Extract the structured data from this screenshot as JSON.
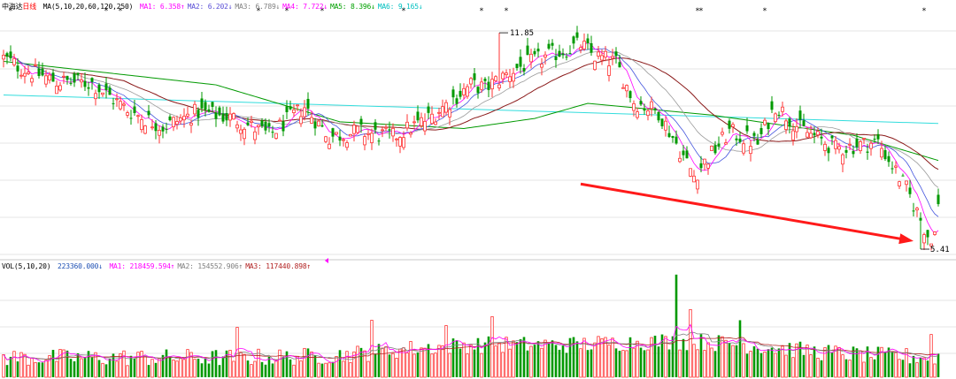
{
  "header": {
    "stock_name": "中海达",
    "period": "日线",
    "ma_params": "MA(5,10,20,60,120,250)",
    "ma_values": [
      {
        "label": "MA1:",
        "value": "6.358↑",
        "color": "#ff00ff"
      },
      {
        "label": "MA2:",
        "value": "6.202↓",
        "color": "#5a4fd6"
      },
      {
        "label": "MA3:",
        "value": "6.789↓",
        "color": "#808080"
      },
      {
        "label": "MA4:",
        "value": "7.722↓",
        "color": "#ff00ff"
      },
      {
        "label": "MA5:",
        "value": "8.396↓",
        "color": "#00a000"
      },
      {
        "label": "MA6:",
        "value": "9.165↓",
        "color": "#00c0c0"
      }
    ]
  },
  "volume_header": {
    "params": "VOL(5,10,20)",
    "value": "223360.000↓",
    "ma_values": [
      {
        "label": "MA1:",
        "value": "218459.594↑",
        "color": "#ff00ff"
      },
      {
        "label": "MA2:",
        "value": "154552.906↑",
        "color": "#808080"
      },
      {
        "label": "MA3:",
        "value": "117440.898↑",
        "color": "#b22222"
      }
    ]
  },
  "annotations": {
    "high_label": "11.85",
    "low_label": "5.41"
  },
  "colors": {
    "up": "#ff3333",
    "down": "#009900",
    "grid": "#e4e4e4",
    "arrow": "#ff1a1a",
    "ma5": "#ff00ff",
    "ma10": "#4455dd",
    "ma20": "#9a9a9a",
    "ma60": "#8b1a1a",
    "ma120": "#009900",
    "ma250": "#33dddd"
  },
  "chart_data": {
    "type": "candlestick",
    "title": "中海达 日线",
    "price_range": [
      5.2,
      12.3
    ],
    "anchors": {
      "x": [
        0,
        5,
        15,
        25,
        35,
        45,
        55,
        65,
        75,
        85,
        92,
        100,
        110,
        120,
        132,
        136,
        145,
        155,
        163,
        167,
        173,
        178,
        185,
        195,
        205,
        213,
        218,
        225,
        235,
        247,
        255,
        262,
        264
      ],
      "close": [
        11.1,
        10.8,
        10.4,
        10.35,
        9.55,
        9.05,
        9.5,
        9.3,
        8.8,
        9.65,
        8.75,
        8.9,
        8.75,
        9.3,
        10.3,
        10.2,
        10.8,
        11.2,
        11.5,
        11.15,
        10.95,
        9.8,
        9.5,
        7.6,
        8.9,
        8.55,
        9.7,
        9.0,
        8.4,
        8.6,
        7.2,
        5.6,
        6.7
      ]
    },
    "ma250_anchors": {
      "x": [
        0,
        264
      ],
      "value": [
        10.0,
        9.15
      ]
    },
    "ma120_anchors": {
      "x": [
        0,
        60,
        95,
        130,
        150,
        165,
        200,
        240,
        264
      ],
      "value": [
        11.0,
        10.3,
        9.2,
        9.0,
        9.3,
        9.75,
        9.4,
        8.8,
        8.05
      ]
    },
    "high_point": {
      "index": 140,
      "value": 11.85
    },
    "low_point": {
      "index": 259,
      "value": 5.41
    },
    "trend_arrow": {
      "from": {
        "index": 163,
        "value": 7.35
      },
      "to": {
        "index": 257,
        "value": 5.65
      }
    },
    "volume_range": [
      0,
      300000
    ],
    "volume": {
      "baseline": 55000,
      "spikes": [
        {
          "index": 66,
          "value": 140000
        },
        {
          "index": 104,
          "value": 160000
        },
        {
          "index": 125,
          "value": 145000
        },
        {
          "index": 138,
          "value": 170000
        },
        {
          "index": 190,
          "value": 288000
        },
        {
          "index": 194,
          "value": 190000
        },
        {
          "index": 208,
          "value": 160000
        },
        {
          "index": 262,
          "value": 120000
        }
      ]
    }
  }
}
